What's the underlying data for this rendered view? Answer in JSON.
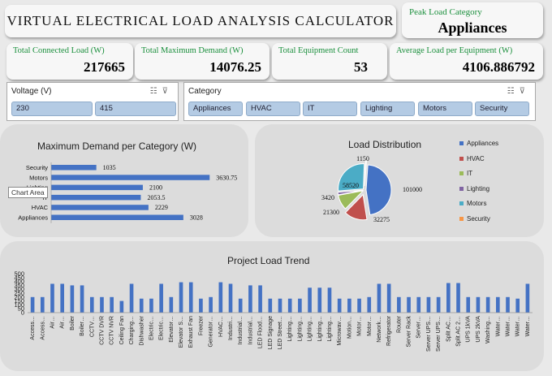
{
  "title": "VIRTUAL ELECTRICAL LOAD ANALYSIS CALCULATOR",
  "peak": {
    "label": "Peak Load Category",
    "value": "Appliances"
  },
  "kpis": [
    {
      "label": "Total Connected Load (W)",
      "value": "217665"
    },
    {
      "label": "Total Maximum Demand (W)",
      "value": "14076.25"
    },
    {
      "label": "Total Equipment Count",
      "value": "53"
    },
    {
      "label": "Average Load per Equipment  (W)",
      "value": "4106.886792"
    }
  ],
  "slicers": {
    "voltage": {
      "header": "Voltage (V)",
      "items": [
        "230",
        "415"
      ]
    },
    "category": {
      "header": "Category",
      "items": [
        "Appliances",
        "HVAC",
        "IT",
        "Lighting",
        "Motors",
        "Security"
      ]
    },
    "icons": [
      "multi-select-icon",
      "clear-filter-icon"
    ]
  },
  "colors": {
    "bar": "#4472c4",
    "accent_green": "#1a8f3c",
    "pie": [
      "#4472c4",
      "#c0504d",
      "#9bbb59",
      "#8064a2",
      "#4bacc6",
      "#f79646"
    ]
  },
  "tooltip": "Chart Area",
  "chart_data": [
    {
      "type": "bar",
      "orientation": "horizontal",
      "title": "Maximum Demand per Category (W)",
      "categories": [
        "Security",
        "Motors",
        "Lighting",
        "IT",
        "HVAC",
        "Appliances"
      ],
      "values": [
        1035,
        3630.75,
        2100,
        2053.5,
        2229,
        3028
      ],
      "labels": [
        "1035",
        "3630.75",
        "2100",
        "2053.5",
        "2229",
        "3028"
      ],
      "xlim": [
        0,
        3700
      ]
    },
    {
      "type": "pie",
      "title": "Load Distribution",
      "categories": [
        "Appliances",
        "HVAC",
        "IT",
        "Lighting",
        "Motors",
        "Security"
      ],
      "values": [
        101000,
        32275,
        21300,
        3420,
        58520,
        1150
      ],
      "labels": [
        "101000",
        "32275",
        "21300",
        "3420",
        "58520",
        "1150"
      ],
      "legend": "right"
    },
    {
      "type": "bar",
      "title": "Project Load Trend",
      "yticks": [
        "0",
        "50",
        "100",
        "150",
        "200",
        "250",
        "300",
        "350",
        "400",
        "450",
        "500"
      ],
      "ylim": [
        0,
        500
      ],
      "categories": [
        "Access…",
        "Access…",
        "Air…",
        "Air…",
        "Boiler",
        "Boiler…",
        "CCTV…",
        "CCTV DVR",
        "CCTV NVR",
        "Ceiling Fan",
        "Charging…",
        "Dishwasher",
        "Electric…",
        "Electric…",
        "Elevator…",
        "Elevator S…",
        "Exhaust Fan",
        "Freezer",
        "Generator…",
        "HVAC…",
        "Industri…",
        "Industrial…",
        "Industrial…",
        "LED Flood…",
        "LED Signage",
        "LED Street…",
        "Lighting…",
        "Lighting…",
        "Lighting…",
        "Lighting…",
        "Lighting…",
        "Microwav…",
        "Motion…",
        "Motor…",
        "Motor…",
        "Network…",
        "Refrigerator",
        "Router",
        "Server Rack",
        "Server…",
        "Server UPS…",
        "Server UPS…",
        "Split AC…",
        "Split AC 2…",
        "UPS 1kVA",
        "UPS 2kVA",
        "Washing…",
        "Water…",
        "Water…",
        "Water…",
        "Water…"
      ],
      "values": [
        200,
        200,
        370,
        370,
        350,
        350,
        200,
        200,
        200,
        150,
        370,
        180,
        180,
        370,
        200,
        390,
        390,
        180,
        200,
        390,
        370,
        180,
        350,
        350,
        180,
        180,
        180,
        180,
        320,
        320,
        320,
        180,
        180,
        180,
        200,
        370,
        370,
        200,
        200,
        200,
        200,
        200,
        380,
        380,
        200,
        200,
        200,
        200,
        200,
        180,
        370
      ]
    }
  ]
}
